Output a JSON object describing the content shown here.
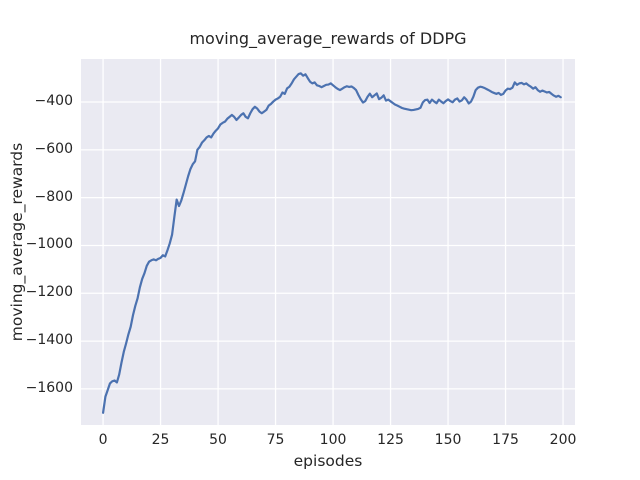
{
  "chart_data": {
    "type": "line",
    "title": "moving_average_rewards of DDPG",
    "xlabel": "episodes",
    "ylabel": "moving_average_rewards",
    "xlim": [
      -9.6,
      205.2
    ],
    "ylim": [
      -1751,
      -220
    ],
    "grid": true,
    "legend": false,
    "style": {
      "axes_background": "#eaeaf2",
      "grid_color": "#ffffff",
      "line_color": "#4c72b0",
      "line_width": 2.2,
      "text_color": "#262626"
    },
    "xticks": {
      "values": [
        0,
        25,
        50,
        75,
        100,
        125,
        150,
        175,
        200
      ],
      "labels": [
        "0",
        "25",
        "50",
        "75",
        "100",
        "125",
        "150",
        "175",
        "200"
      ]
    },
    "yticks": {
      "values": [
        -400,
        -600,
        -800,
        -1000,
        -1200,
        -1400,
        -1600
      ],
      "labels": [
        "−400",
        "−600",
        "−800",
        "−1000",
        "−1200",
        "−1400",
        "−1600"
      ]
    },
    "series": [
      {
        "name": "moving_average_rewards",
        "x_first": 0,
        "x_step": 1,
        "values": [
          -1700,
          -1633,
          -1605,
          -1577,
          -1568,
          -1565,
          -1573,
          -1540,
          -1490,
          -1445,
          -1410,
          -1372,
          -1340,
          -1292,
          -1253,
          -1221,
          -1175,
          -1140,
          -1116,
          -1085,
          -1068,
          -1062,
          -1058,
          -1062,
          -1056,
          -1052,
          -1041,
          -1046,
          -1020,
          -991,
          -955,
          -880,
          -808,
          -835,
          -812,
          -780,
          -745,
          -710,
          -680,
          -660,
          -648,
          -600,
          -588,
          -570,
          -560,
          -548,
          -542,
          -548,
          -532,
          -520,
          -510,
          -494,
          -487,
          -482,
          -470,
          -462,
          -454,
          -462,
          -475,
          -465,
          -454,
          -447,
          -462,
          -468,
          -447,
          -430,
          -420,
          -427,
          -440,
          -447,
          -440,
          -433,
          -415,
          -408,
          -398,
          -390,
          -385,
          -378,
          -360,
          -366,
          -343,
          -336,
          -322,
          -305,
          -294,
          -283,
          -280,
          -290,
          -284,
          -300,
          -315,
          -322,
          -318,
          -330,
          -333,
          -338,
          -333,
          -328,
          -327,
          -322,
          -330,
          -338,
          -345,
          -350,
          -344,
          -338,
          -334,
          -337,
          -335,
          -341,
          -350,
          -370,
          -388,
          -402,
          -396,
          -378,
          -365,
          -380,
          -372,
          -364,
          -388,
          -382,
          -372,
          -394,
          -390,
          -397,
          -404,
          -411,
          -415,
          -420,
          -425,
          -428,
          -430,
          -432,
          -434,
          -433,
          -431,
          -429,
          -424,
          -402,
          -392,
          -390,
          -404,
          -390,
          -398,
          -405,
          -390,
          -398,
          -405,
          -396,
          -389,
          -396,
          -401,
          -390,
          -385,
          -398,
          -393,
          -380,
          -390,
          -406,
          -398,
          -378,
          -350,
          -340,
          -336,
          -338,
          -342,
          -347,
          -352,
          -358,
          -362,
          -366,
          -362,
          -370,
          -366,
          -352,
          -344,
          -346,
          -340,
          -318,
          -328,
          -322,
          -320,
          -326,
          -322,
          -330,
          -336,
          -344,
          -338,
          -350,
          -357,
          -352,
          -356,
          -360,
          -358,
          -366,
          -373,
          -378,
          -374,
          -380
        ]
      }
    ]
  }
}
